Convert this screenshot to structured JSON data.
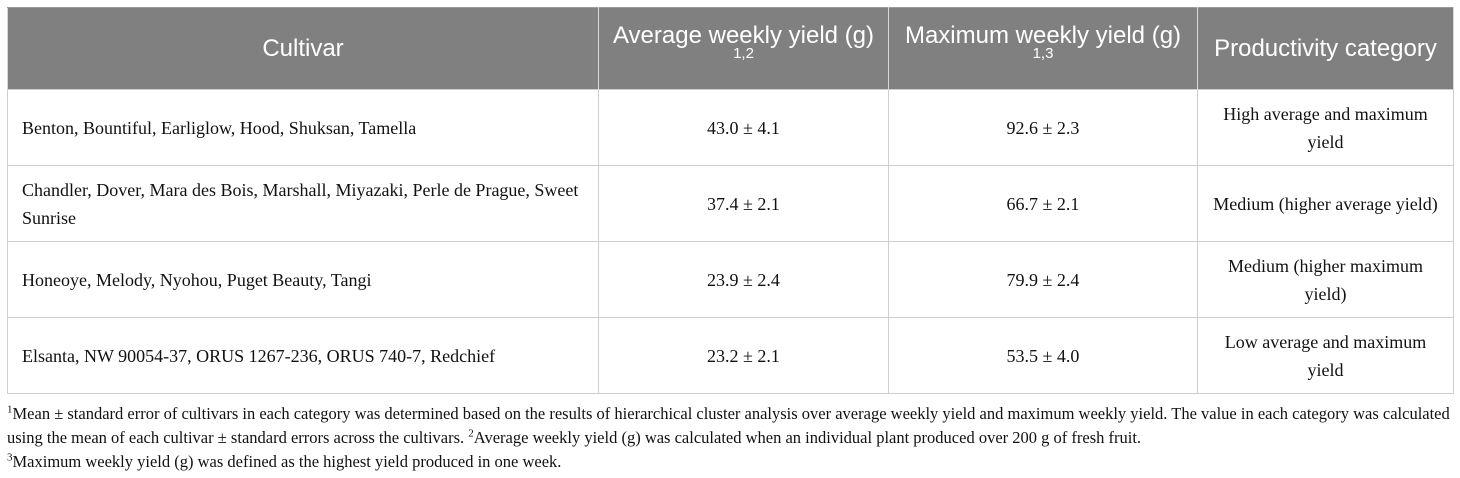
{
  "table": {
    "headers": [
      {
        "label": "Cultivar",
        "sup": ""
      },
      {
        "label": "Average weekly yield (g)",
        "sup": "1,2"
      },
      {
        "label": "Maximum weekly yield (g)",
        "sup": "1,3"
      },
      {
        "label": "Productivity category",
        "sup": ""
      }
    ],
    "rows": [
      {
        "cultivar": "Benton, Bountiful, Earliglow, Hood, Shuksan, Tamella",
        "avg": "43.0 ± 4.1",
        "max": "92.6 ± 2.3",
        "category": "High average and maximum yield"
      },
      {
        "cultivar": "Chandler, Dover, Mara des Bois, Marshall, Miyazaki, Perle de Prague, Sweet Sunrise",
        "avg": "37.4 ± 2.1",
        "max": "66.7 ± 2.1",
        "category": "Medium (higher average yield)"
      },
      {
        "cultivar": "Honeoye, Melody, Nyohou, Puget Beauty, Tangi",
        "avg": "23.9 ± 2.4",
        "max": "79.9 ± 2.4",
        "category": "Medium (higher maximum yield)"
      },
      {
        "cultivar": "Elsanta, NW 90054-37, ORUS 1267-236, ORUS 740-7, Redchief",
        "avg": "23.2 ± 2.1",
        "max": "53.5 ± 4.0",
        "category": "Low average and maximum yield"
      }
    ]
  },
  "footnotes": [
    {
      "mark": "1",
      "text": "Mean ± standard error of cultivars in each category was determined based on the results of hierarchical cluster analysis over average weekly yield and maximum weekly yield. The value in each category was calculated using the mean of each cultivar ± standard errors across the cultivars. "
    },
    {
      "mark": "2",
      "text": "Average weekly yield (g) was calculated when an individual plant produced over 200 g of fresh fruit."
    },
    {
      "mark": "3",
      "text": "Maximum weekly yield (g) was defined as the highest yield produced in one week."
    }
  ],
  "colors": {
    "header_bg": "#808080",
    "header_text": "#ffffff",
    "border": "#cfcfcf"
  }
}
